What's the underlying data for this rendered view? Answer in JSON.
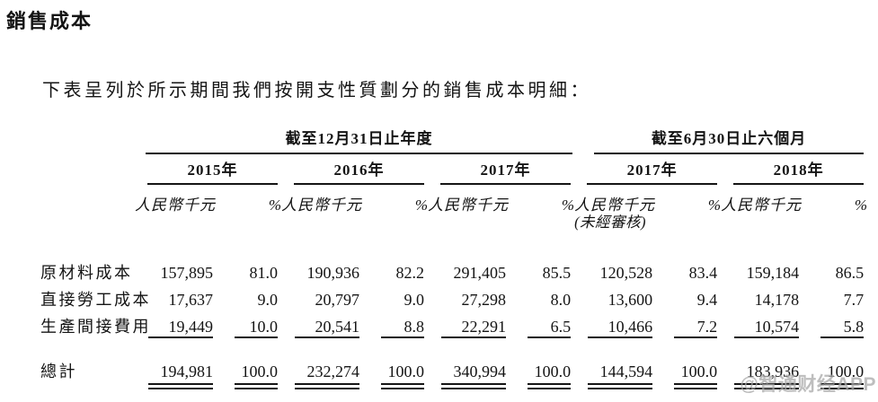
{
  "page": {
    "title": "銷售成本",
    "intro": "下表呈列於所示期間我們按開支性質劃分的銷售成本明細：",
    "watermark": "@智通财经APP"
  },
  "table": {
    "group_headers": [
      {
        "label": "截至12月31日止年度",
        "years": 3
      },
      {
        "label": "截至6月30日止六個月",
        "years": 2
      }
    ],
    "year_headers": [
      "2015年",
      "2016年",
      "2017年",
      "2017年",
      "2018年"
    ],
    "unit_label": "人民幣千元",
    "pct_label": "%",
    "unaudited_note": "(未經審核)",
    "rows": [
      {
        "label": "原材料成本",
        "values": [
          "157,895",
          "81.0",
          "190,936",
          "82.2",
          "291,405",
          "85.5",
          "120,528",
          "83.4",
          "159,184",
          "86.5"
        ]
      },
      {
        "label": "直接勞工成本",
        "values": [
          "17,637",
          "9.0",
          "20,797",
          "9.0",
          "27,298",
          "8.0",
          "13,600",
          "9.4",
          "14,178",
          "7.7"
        ]
      },
      {
        "label": "生產間接費用",
        "values": [
          "19,449",
          "10.0",
          "20,541",
          "8.8",
          "22,291",
          "6.5",
          "10,466",
          "7.2",
          "10,574",
          "5.8"
        ]
      }
    ],
    "total_row": {
      "label": "總計",
      "values": [
        "194,981",
        "100.0",
        "232,274",
        "100.0",
        "340,994",
        "100.0",
        "144,594",
        "100.0",
        "183,936",
        "100.0"
      ]
    }
  }
}
